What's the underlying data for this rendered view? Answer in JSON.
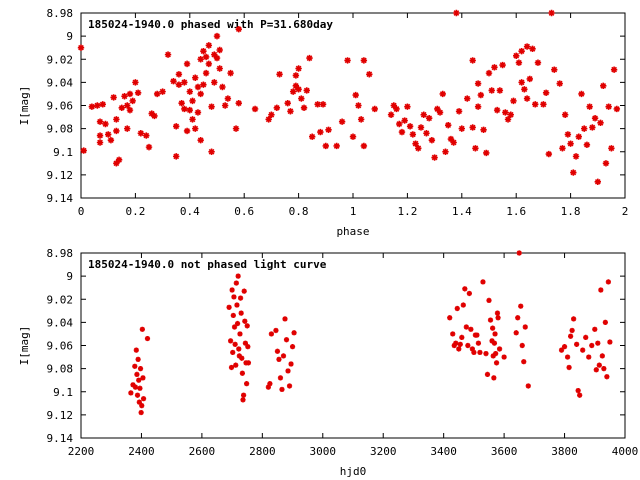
{
  "chart_data": [
    {
      "type": "scatter",
      "title": "185024-1940.0 phased with P=31.680day",
      "xlabel": "phase",
      "ylabel": "I[mag]",
      "xlim": [
        0,
        2
      ],
      "ylim": [
        8.98,
        9.14
      ],
      "y_inverted": true,
      "x_ticks": [
        "0",
        "0.2",
        "0.4",
        "0.6",
        "0.8",
        "1",
        "1.2",
        "1.4",
        "1.6",
        "1.8",
        "2"
      ],
      "y_ticks": [
        "8.98",
        "9",
        "9.02",
        "9.04",
        "9.06",
        "9.08",
        "9.1",
        "9.12",
        "9.14"
      ],
      "marker_color": "#e00000",
      "points": [
        [
          0.0,
          9.01
        ],
        [
          0.01,
          9.099
        ],
        [
          0.04,
          9.061
        ],
        [
          0.06,
          9.06
        ],
        [
          0.07,
          9.074
        ],
        [
          0.07,
          9.086
        ],
        [
          0.07,
          9.092
        ],
        [
          0.08,
          9.059
        ],
        [
          0.09,
          9.076
        ],
        [
          0.1,
          9.085
        ],
        [
          0.11,
          9.09
        ],
        [
          0.12,
          9.053
        ],
        [
          0.13,
          9.072
        ],
        [
          0.13,
          9.082
        ],
        [
          0.13,
          9.11
        ],
        [
          0.14,
          9.107
        ],
        [
          0.15,
          9.062
        ],
        [
          0.16,
          9.052
        ],
        [
          0.17,
          9.06
        ],
        [
          0.17,
          9.08
        ],
        [
          0.18,
          9.05
        ],
        [
          0.18,
          9.064
        ],
        [
          0.19,
          9.056
        ],
        [
          0.2,
          9.04
        ],
        [
          0.21,
          9.049
        ],
        [
          0.22,
          9.084
        ],
        [
          0.24,
          9.086
        ],
        [
          0.25,
          9.096
        ],
        [
          0.26,
          9.067
        ],
        [
          0.27,
          9.069
        ],
        [
          0.28,
          9.05
        ],
        [
          0.3,
          9.048
        ],
        [
          0.32,
          9.016
        ],
        [
          0.34,
          9.039
        ],
        [
          0.35,
          9.078
        ],
        [
          0.35,
          9.104
        ],
        [
          0.36,
          9.033
        ],
        [
          0.36,
          9.042
        ],
        [
          0.37,
          9.058
        ],
        [
          0.38,
          9.04
        ],
        [
          0.38,
          9.063
        ],
        [
          0.39,
          9.024
        ],
        [
          0.39,
          9.082
        ],
        [
          0.4,
          9.048
        ],
        [
          0.4,
          9.064
        ],
        [
          0.41,
          9.056
        ],
        [
          0.41,
          9.072
        ],
        [
          0.42,
          9.036
        ],
        [
          0.42,
          9.08
        ],
        [
          0.43,
          9.044
        ],
        [
          0.43,
          9.066
        ],
        [
          0.44,
          9.02
        ],
        [
          0.44,
          9.05
        ],
        [
          0.44,
          9.09
        ],
        [
          0.45,
          9.013
        ],
        [
          0.45,
          9.042
        ],
        [
          0.46,
          9.018
        ],
        [
          0.46,
          9.032
        ],
        [
          0.47,
          9.008
        ],
        [
          0.47,
          9.024
        ],
        [
          0.48,
          9.1
        ],
        [
          0.48,
          9.061
        ],
        [
          0.49,
          9.04
        ],
        [
          0.49,
          9.016
        ],
        [
          0.5,
          9.0
        ],
        [
          0.5,
          9.019
        ],
        [
          0.51,
          9.012
        ],
        [
          0.51,
          9.028
        ],
        [
          0.52,
          9.044
        ],
        [
          0.53,
          9.06
        ],
        [
          0.54,
          9.054
        ],
        [
          0.55,
          9.032
        ],
        [
          0.57,
          9.08
        ],
        [
          0.58,
          9.058
        ],
        [
          0.58,
          8.994
        ],
        [
          0.64,
          9.063
        ],
        [
          0.69,
          9.072
        ],
        [
          0.7,
          9.068
        ],
        [
          0.72,
          9.062
        ],
        [
          0.73,
          9.033
        ],
        [
          0.76,
          9.058
        ],
        [
          0.77,
          9.065
        ],
        [
          0.78,
          9.048
        ],
        [
          0.79,
          9.034
        ],
        [
          0.79,
          9.043
        ],
        [
          0.8,
          9.028
        ],
        [
          0.8,
          9.046
        ],
        [
          0.81,
          9.054
        ],
        [
          0.82,
          9.062
        ],
        [
          0.83,
          9.047
        ],
        [
          0.84,
          9.019
        ],
        [
          0.85,
          9.087
        ],
        [
          0.87,
          9.059
        ],
        [
          0.88,
          9.083
        ],
        [
          0.89,
          9.059
        ],
        [
          0.9,
          9.095
        ],
        [
          0.91,
          9.081
        ],
        [
          0.94,
          9.095
        ],
        [
          0.96,
          9.074
        ],
        [
          0.98,
          9.021
        ],
        [
          1.0,
          9.087
        ],
        [
          1.01,
          9.051
        ],
        [
          1.02,
          9.06
        ],
        [
          1.03,
          9.072
        ],
        [
          1.04,
          9.021
        ],
        [
          1.04,
          9.095
        ],
        [
          1.06,
          9.033
        ],
        [
          1.08,
          9.063
        ],
        [
          1.14,
          9.068
        ],
        [
          1.15,
          9.06
        ],
        [
          1.16,
          9.063
        ],
        [
          1.17,
          9.076
        ],
        [
          1.18,
          9.083
        ],
        [
          1.19,
          9.073
        ],
        [
          1.2,
          9.061
        ],
        [
          1.21,
          9.078
        ],
        [
          1.22,
          9.085
        ],
        [
          1.23,
          9.093
        ],
        [
          1.24,
          9.097
        ],
        [
          1.25,
          9.079
        ],
        [
          1.26,
          9.068
        ],
        [
          1.27,
          9.084
        ],
        [
          1.28,
          9.071
        ],
        [
          1.29,
          9.09
        ],
        [
          1.3,
          9.105
        ],
        [
          1.31,
          9.063
        ],
        [
          1.32,
          9.066
        ],
        [
          1.33,
          9.05
        ],
        [
          1.34,
          9.1
        ],
        [
          1.35,
          9.077
        ],
        [
          1.36,
          9.089
        ],
        [
          1.37,
          9.092
        ],
        [
          1.38,
          8.98
        ],
        [
          1.39,
          9.065
        ],
        [
          1.4,
          9.08
        ],
        [
          1.42,
          9.054
        ],
        [
          1.44,
          9.021
        ],
        [
          1.44,
          9.079
        ],
        [
          1.45,
          9.097
        ],
        [
          1.46,
          9.061
        ],
        [
          1.46,
          9.041
        ],
        [
          1.47,
          9.051
        ],
        [
          1.48,
          9.081
        ],
        [
          1.49,
          9.101
        ],
        [
          1.5,
          9.032
        ],
        [
          1.51,
          9.047
        ],
        [
          1.52,
          9.027
        ],
        [
          1.53,
          9.064
        ],
        [
          1.54,
          9.047
        ],
        [
          1.55,
          9.025
        ],
        [
          1.56,
          9.066
        ],
        [
          1.57,
          9.072
        ],
        [
          1.58,
          9.068
        ],
        [
          1.59,
          9.056
        ],
        [
          1.6,
          9.017
        ],
        [
          1.61,
          9.023
        ],
        [
          1.62,
          9.013
        ],
        [
          1.62,
          9.04
        ],
        [
          1.63,
          9.046
        ],
        [
          1.64,
          9.009
        ],
        [
          1.64,
          9.054
        ],
        [
          1.65,
          9.037
        ],
        [
          1.66,
          9.011
        ],
        [
          1.67,
          9.059
        ],
        [
          1.68,
          9.023
        ],
        [
          1.7,
          9.059
        ],
        [
          1.71,
          9.049
        ],
        [
          1.72,
          9.102
        ],
        [
          1.73,
          8.98
        ],
        [
          1.74,
          9.029
        ],
        [
          1.76,
          9.041
        ],
        [
          1.77,
          9.097
        ],
        [
          1.78,
          9.068
        ],
        [
          1.79,
          9.085
        ],
        [
          1.8,
          9.093
        ],
        [
          1.81,
          9.118
        ],
        [
          1.82,
          9.104
        ],
        [
          1.83,
          9.087
        ],
        [
          1.84,
          9.05
        ],
        [
          1.85,
          9.08
        ],
        [
          1.86,
          9.094
        ],
        [
          1.87,
          9.061
        ],
        [
          1.88,
          9.079
        ],
        [
          1.89,
          9.071
        ],
        [
          1.9,
          9.126
        ],
        [
          1.91,
          9.075
        ],
        [
          1.92,
          9.043
        ],
        [
          1.93,
          9.11
        ],
        [
          1.94,
          9.061
        ],
        [
          1.95,
          9.097
        ],
        [
          1.96,
          9.029
        ],
        [
          1.97,
          9.063
        ]
      ]
    },
    {
      "type": "scatter",
      "title": "185024-1940.0 not phased light curve",
      "xlabel": "hjd0",
      "ylabel": "I[mag]",
      "xlim": [
        2200,
        4000
      ],
      "ylim": [
        8.98,
        9.14
      ],
      "y_inverted": true,
      "x_ticks": [
        "2200",
        "2400",
        "2600",
        "2800",
        "3000",
        "3200",
        "3400",
        "3600",
        "3800",
        "4000"
      ],
      "y_ticks": [
        "8.98",
        "9",
        "9.02",
        "9.04",
        "9.06",
        "9.08",
        "9.1",
        "9.12",
        "9.14"
      ],
      "marker_color": "#e00000",
      "points": [
        [
          2365,
          9.101
        ],
        [
          2372,
          9.094
        ],
        [
          2378,
          9.078
        ],
        [
          2380,
          9.096
        ],
        [
          2383,
          9.064
        ],
        [
          2385,
          9.085
        ],
        [
          2387,
          9.103
        ],
        [
          2389,
          9.072
        ],
        [
          2391,
          9.09
        ],
        [
          2393,
          9.109
        ],
        [
          2395,
          9.097
        ],
        [
          2397,
          9.08
        ],
        [
          2399,
          9.118
        ],
        [
          2401,
          9.112
        ],
        [
          2403,
          9.046
        ],
        [
          2405,
          9.088
        ],
        [
          2407,
          9.106
        ],
        [
          2420,
          9.054
        ],
        [
          2690,
          9.027
        ],
        [
          2695,
          9.056
        ],
        [
          2698,
          9.079
        ],
        [
          2700,
          9.012
        ],
        [
          2702,
          9.066
        ],
        [
          2704,
          9.034
        ],
        [
          2706,
          9.018
        ],
        [
          2708,
          9.044
        ],
        [
          2710,
          9.059
        ],
        [
          2712,
          9.077
        ],
        [
          2714,
          9.006
        ],
        [
          2716,
          9.025
        ],
        [
          2718,
          9.041
        ],
        [
          2720,
          9.0
        ],
        [
          2722,
          9.063
        ],
        [
          2724,
          9.069
        ],
        [
          2726,
          9.05
        ],
        [
          2728,
          9.019
        ],
        [
          2730,
          9.032
        ],
        [
          2732,
          9.071
        ],
        [
          2734,
          9.084
        ],
        [
          2736,
          9.107
        ],
        [
          2738,
          9.103
        ],
        [
          2740,
          9.013
        ],
        [
          2742,
          9.039
        ],
        [
          2744,
          9.058
        ],
        [
          2746,
          9.075
        ],
        [
          2748,
          9.093
        ],
        [
          2750,
          9.043
        ],
        [
          2752,
          9.061
        ],
        [
          2754,
          9.075
        ],
        [
          2820,
          9.096
        ],
        [
          2825,
          9.093
        ],
        [
          2830,
          9.05
        ],
        [
          2845,
          9.047
        ],
        [
          2850,
          9.065
        ],
        [
          2855,
          9.072
        ],
        [
          2860,
          9.088
        ],
        [
          2865,
          9.098
        ],
        [
          2870,
          9.069
        ],
        [
          2875,
          9.037
        ],
        [
          2880,
          9.055
        ],
        [
          2885,
          9.082
        ],
        [
          2890,
          9.095
        ],
        [
          2895,
          9.076
        ],
        [
          2900,
          9.061
        ],
        [
          2905,
          9.049
        ],
        [
          3420,
          9.036
        ],
        [
          3430,
          9.05
        ],
        [
          3435,
          9.06
        ],
        [
          3440,
          9.058
        ],
        [
          3445,
          9.028
        ],
        [
          3450,
          9.063
        ],
        [
          3455,
          9.059
        ],
        [
          3460,
          9.053
        ],
        [
          3465,
          9.025
        ],
        [
          3470,
          9.011
        ],
        [
          3475,
          9.044
        ],
        [
          3480,
          9.06
        ],
        [
          3485,
          9.015
        ],
        [
          3490,
          9.046
        ],
        [
          3495,
          9.063
        ],
        [
          3500,
          9.066
        ],
        [
          3505,
          9.051
        ],
        [
          3510,
          9.051
        ],
        [
          3515,
          9.058
        ],
        [
          3520,
          9.066
        ],
        [
          3530,
          9.005
        ],
        [
          3540,
          9.067
        ],
        [
          3545,
          9.085
        ],
        [
          3550,
          9.021
        ],
        [
          3555,
          9.038
        ],
        [
          3560,
          9.056
        ],
        [
          3562,
          9.045
        ],
        [
          3564,
          9.069
        ],
        [
          3566,
          9.088
        ],
        [
          3568,
          9.058
        ],
        [
          3570,
          9.05
        ],
        [
          3572,
          9.067
        ],
        [
          3575,
          9.075
        ],
        [
          3578,
          9.032
        ],
        [
          3580,
          9.036
        ],
        [
          3585,
          9.063
        ],
        [
          3600,
          9.07
        ],
        [
          3640,
          9.049
        ],
        [
          3645,
          9.036
        ],
        [
          3650,
          8.98
        ],
        [
          3655,
          9.026
        ],
        [
          3660,
          9.06
        ],
        [
          3665,
          9.074
        ],
        [
          3670,
          9.044
        ],
        [
          3680,
          9.095
        ],
        [
          3790,
          9.064
        ],
        [
          3800,
          9.061
        ],
        [
          3810,
          9.07
        ],
        [
          3815,
          9.079
        ],
        [
          3820,
          9.052
        ],
        [
          3825,
          9.047
        ],
        [
          3830,
          9.037
        ],
        [
          3840,
          9.059
        ],
        [
          3845,
          9.099
        ],
        [
          3850,
          9.103
        ],
        [
          3860,
          9.064
        ],
        [
          3870,
          9.053
        ],
        [
          3880,
          9.07
        ],
        [
          3890,
          9.06
        ],
        [
          3900,
          9.046
        ],
        [
          3905,
          9.081
        ],
        [
          3910,
          9.058
        ],
        [
          3915,
          9.077
        ],
        [
          3920,
          9.012
        ],
        [
          3925,
          9.069
        ],
        [
          3930,
          9.08
        ],
        [
          3935,
          9.04
        ],
        [
          3940,
          9.087
        ],
        [
          3945,
          9.005
        ],
        [
          3950,
          9.057
        ]
      ]
    }
  ]
}
